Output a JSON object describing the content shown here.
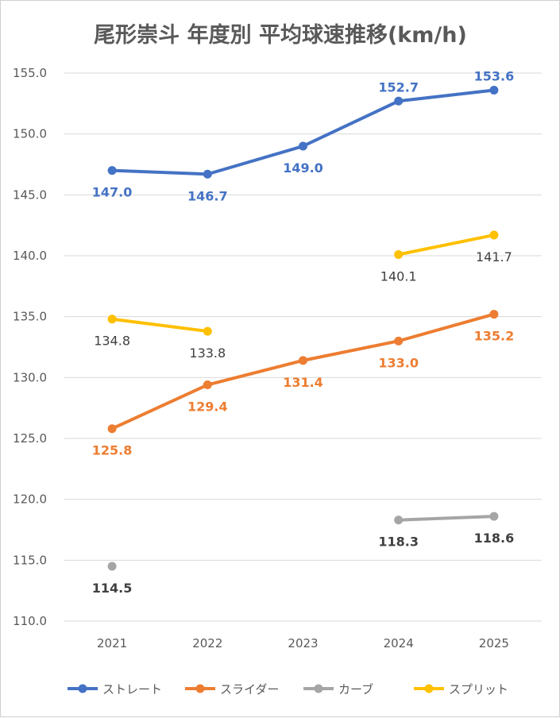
{
  "chart_data": {
    "type": "line",
    "title": "尾形崇斗 年度別 平均球速推移(km/h)",
    "categories": [
      "2021",
      "2022",
      "2023",
      "2024",
      "2025"
    ],
    "ylim": [
      110,
      155
    ],
    "y_ticks": [
      "110.0",
      "115.0",
      "120.0",
      "125.0",
      "130.0",
      "135.0",
      "140.0",
      "145.0",
      "150.0",
      "155.0"
    ],
    "y_tick_values": [
      110,
      115,
      120,
      125,
      130,
      135,
      140,
      145,
      150,
      155
    ],
    "grid": "horizontal",
    "legend_position": "bottom",
    "series": [
      {
        "name": "ストレート",
        "color": "#4472C4",
        "values": [
          147.0,
          146.7,
          149.0,
          152.7,
          153.6
        ],
        "labels": [
          "147.0",
          "146.7",
          "149.0",
          "152.7",
          "153.6"
        ],
        "label_color": "#4472C4"
      },
      {
        "name": "スライダー",
        "color": "#ED7D31",
        "values": [
          125.8,
          129.4,
          131.4,
          133.0,
          135.2
        ],
        "labels": [
          "125.8",
          "129.4",
          "131.4",
          "133.0",
          "135.2"
        ],
        "label_color": "#ED7D31"
      },
      {
        "name": "カーブ",
        "color": "#A5A5A5",
        "values": [
          114.5,
          null,
          null,
          118.3,
          118.6
        ],
        "labels": [
          "114.5",
          null,
          null,
          "118.3",
          "118.6"
        ],
        "label_color": "#404040"
      },
      {
        "name": "スプリット",
        "color": "#FFC000",
        "values": [
          134.8,
          133.8,
          null,
          140.1,
          141.7
        ],
        "labels": [
          "134.8",
          "133.8",
          null,
          "140.1",
          "141.7"
        ],
        "label_color": "#404040"
      }
    ]
  }
}
